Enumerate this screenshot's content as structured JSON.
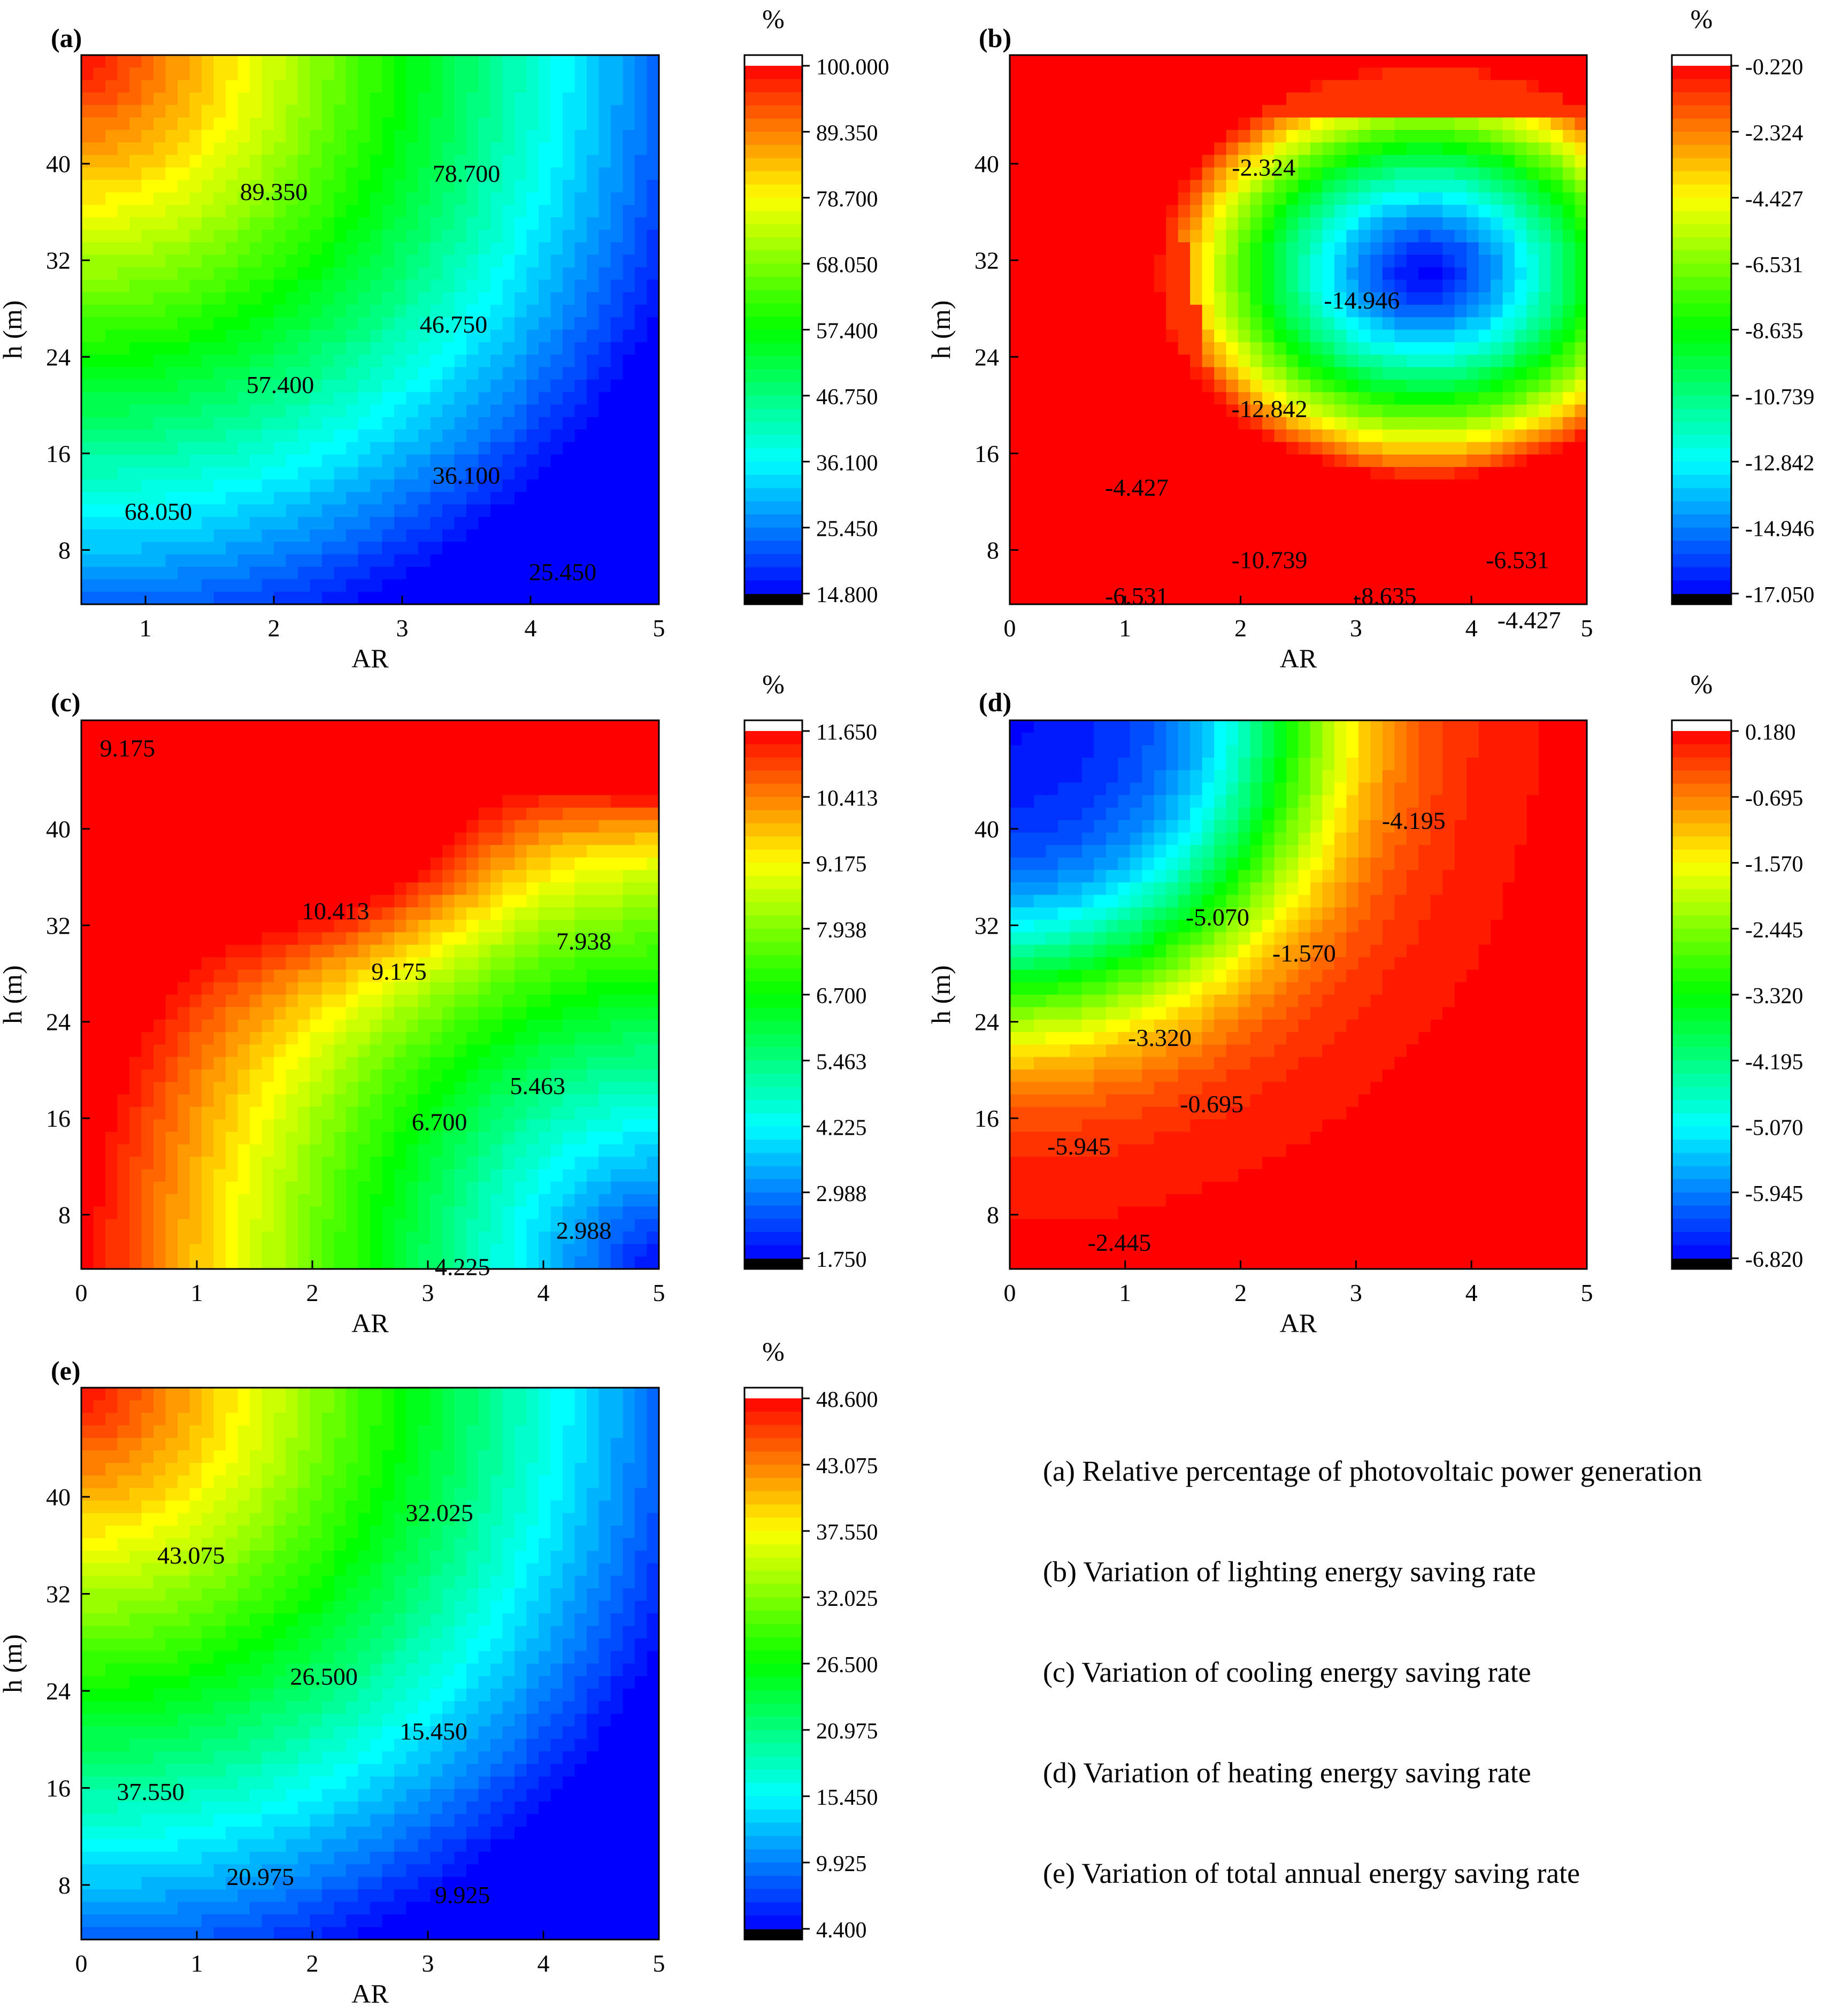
{
  "chart_data": [
    {
      "id": "a",
      "type": "contour",
      "panel_label": "(a)",
      "title": "Relative percentage of photovoltaic power generation",
      "xlabel": "AR",
      "ylabel": "h (m)",
      "xlim": [
        0.5,
        5
      ],
      "ylim": [
        3.5,
        49
      ],
      "xticks": [
        1,
        2,
        3,
        4,
        5
      ],
      "yticks": [
        8,
        16,
        24,
        32,
        40
      ],
      "colorbar": {
        "unit": "%",
        "min": 14.8,
        "max": 100.0,
        "ticks": [
          "100.000",
          "89.350",
          "78.700",
          "68.050",
          "57.400",
          "46.750",
          "36.100",
          "25.450",
          "14.800"
        ],
        "palette": [
          "#0000ff",
          "#00ffff",
          "#00ff00",
          "#ffff00",
          "#ff0000"
        ]
      },
      "model": {
        "kind": "radial",
        "center": [
          0.5,
          49
        ],
        "sx": 4.5,
        "sy": 45.5,
        "power": 1.0,
        "high_at_center": true
      },
      "contour_labels": [
        {
          "text": "89.350",
          "x": 2.0,
          "y": 37
        },
        {
          "text": "78.700",
          "x": 3.5,
          "y": 38.5
        },
        {
          "text": "46.750",
          "x": 3.4,
          "y": 26
        },
        {
          "text": "57.400",
          "x": 2.05,
          "y": 21
        },
        {
          "text": "36.100",
          "x": 3.5,
          "y": 13.5
        },
        {
          "text": "68.050",
          "x": 1.1,
          "y": 10.5
        },
        {
          "text": "25.450",
          "x": 4.25,
          "y": 5.5
        }
      ]
    },
    {
      "id": "b",
      "type": "contour",
      "panel_label": "(b)",
      "title": "Variation of lighting energy saving rate",
      "xlabel": "AR",
      "ylabel": "h (m)",
      "xlim": [
        0,
        5
      ],
      "ylim": [
        3.5,
        49
      ],
      "xticks": [
        0,
        1,
        2,
        3,
        4,
        5
      ],
      "yticks": [
        8,
        16,
        24,
        32,
        40
      ],
      "colorbar": {
        "unit": "%",
        "min": -17.05,
        "max": -0.22,
        "ticks": [
          "-0.220",
          "-2.324",
          "-4.427",
          "-6.531",
          "-8.635",
          "-10.739",
          "-12.842",
          "-14.946",
          "-17.050"
        ],
        "palette": [
          "#0000ff",
          "#00ffff",
          "#00ff00",
          "#ffff00",
          "#ff0000"
        ]
      },
      "model": {
        "kind": "blob",
        "center": [
          3.6,
          31
        ],
        "sx": 1.9,
        "sy": 14,
        "power": 1.4,
        "boundary": 0.8,
        "gain": 2.0
      },
      "contour_labels": [
        {
          "text": "-2.324",
          "x": 2.2,
          "y": 39
        },
        {
          "text": "-14.946",
          "x": 3.05,
          "y": 28
        },
        {
          "text": "-12.842",
          "x": 2.25,
          "y": 19
        },
        {
          "text": "-4.427",
          "x": 1.1,
          "y": 12.5
        },
        {
          "text": "-10.739",
          "x": 2.25,
          "y": 6.5
        },
        {
          "text": "-6.531",
          "x": 1.1,
          "y": 3.5
        },
        {
          "text": "-8.635",
          "x": 3.25,
          "y": 3.5
        },
        {
          "text": "-6.531",
          "x": 4.4,
          "y": 6.5
        },
        {
          "text": "-4.427",
          "x": 4.5,
          "y": 1.5
        }
      ]
    },
    {
      "id": "c",
      "type": "contour",
      "panel_label": "(c)",
      "title": "Variation of cooling energy saving rate",
      "xlabel": "AR",
      "ylabel": "h (m)",
      "xlim": [
        0,
        5
      ],
      "ylim": [
        3.5,
        49
      ],
      "xticks": [
        0,
        1,
        2,
        3,
        4,
        5
      ],
      "yticks": [
        8,
        16,
        24,
        32,
        40
      ],
      "colorbar": {
        "unit": "%",
        "min": 1.75,
        "max": 11.65,
        "ticks": [
          "11.650",
          "10.413",
          "9.175",
          "7.938",
          "6.700",
          "5.463",
          "4.225",
          "2.988",
          "1.750"
        ],
        "palette": [
          "#0000ff",
          "#00ffff",
          "#00ff00",
          "#ffff00",
          "#ff0000"
        ]
      },
      "model": {
        "kind": "cooling"
      },
      "contour_labels": [
        {
          "text": "9.175",
          "x": 0.4,
          "y": 46
        },
        {
          "text": "10.413",
          "x": 2.2,
          "y": 32.5
        },
        {
          "text": "9.175",
          "x": 2.75,
          "y": 27.5
        },
        {
          "text": "7.938",
          "x": 4.35,
          "y": 30
        },
        {
          "text": "5.463",
          "x": 3.95,
          "y": 18
        },
        {
          "text": "6.700",
          "x": 3.1,
          "y": 15
        },
        {
          "text": "2.988",
          "x": 4.35,
          "y": 6
        },
        {
          "text": "4.225",
          "x": 3.3,
          "y": 3
        }
      ]
    },
    {
      "id": "d",
      "type": "contour",
      "panel_label": "(d)",
      "title": "Variation of heating energy saving rate",
      "xlabel": "AR",
      "ylabel": "h (m)",
      "xlim": [
        0,
        5
      ],
      "ylim": [
        3.5,
        49
      ],
      "xticks": [
        0,
        1,
        2,
        3,
        4,
        5
      ],
      "yticks": [
        8,
        16,
        24,
        32,
        40
      ],
      "colorbar": {
        "unit": "%",
        "min": -6.82,
        "max": 0.18,
        "ticks": [
          "0.180",
          "-0.695",
          "-1.570",
          "-2.445",
          "-3.320",
          "-4.195",
          "-5.070",
          "-5.945",
          "-6.820"
        ],
        "palette": [
          "#0000ff",
          "#00ffff",
          "#00ff00",
          "#ffff00",
          "#ff0000"
        ]
      },
      "model": {
        "kind": "radial",
        "center": [
          0,
          49
        ],
        "sx": 5,
        "sy": 45.5,
        "power": 1.0,
        "high_at_center": false,
        "steep": 0.48,
        "width": 0.1
      },
      "contour_labels": [
        {
          "text": "-4.195",
          "x": 3.5,
          "y": 40
        },
        {
          "text": "-5.070",
          "x": 1.8,
          "y": 32
        },
        {
          "text": "-1.570",
          "x": 2.55,
          "y": 29
        },
        {
          "text": "-3.320",
          "x": 1.3,
          "y": 22
        },
        {
          "text": "-0.695",
          "x": 1.75,
          "y": 16.5
        },
        {
          "text": "-5.945",
          "x": 0.6,
          "y": 13
        },
        {
          "text": "-2.445",
          "x": 0.95,
          "y": 5
        }
      ]
    },
    {
      "id": "e",
      "type": "contour",
      "panel_label": "(e)",
      "title": "Variation of total annual energy saving rate",
      "xlabel": "AR",
      "ylabel": "h (m)",
      "xlim": [
        0,
        5
      ],
      "ylim": [
        3.5,
        49
      ],
      "xticks": [
        0,
        1,
        2,
        3,
        4,
        5
      ],
      "yticks": [
        8,
        16,
        24,
        32,
        40
      ],
      "colorbar": {
        "unit": "%",
        "min": 4.4,
        "max": 48.6,
        "ticks": [
          "48.600",
          "43.075",
          "37.550",
          "32.025",
          "26.500",
          "20.975",
          "15.450",
          "9.925",
          "4.400"
        ],
        "palette": [
          "#0000ff",
          "#00ffff",
          "#00ff00",
          "#ffff00",
          "#ff0000"
        ]
      },
      "model": {
        "kind": "radial",
        "center": [
          0,
          49
        ],
        "sx": 5,
        "sy": 45.5,
        "power": 1.0,
        "high_at_center": true
      },
      "contour_labels": [
        {
          "text": "43.075",
          "x": 0.95,
          "y": 34.5
        },
        {
          "text": "32.025",
          "x": 3.1,
          "y": 38
        },
        {
          "text": "26.500",
          "x": 2.1,
          "y": 24.5
        },
        {
          "text": "15.450",
          "x": 3.05,
          "y": 20
        },
        {
          "text": "37.550",
          "x": 0.6,
          "y": 15
        },
        {
          "text": "20.975",
          "x": 1.55,
          "y": 8
        },
        {
          "text": "9.925",
          "x": 3.3,
          "y": 6.5
        }
      ]
    }
  ],
  "legend": {
    "lines": [
      "(a) Relative percentage of photovoltaic power generation",
      "(b) Variation of lighting energy saving rate",
      "(c) Variation of cooling energy saving rate",
      "(d) Variation of heating energy saving rate",
      "(e) Variation of total annual energy saving rate"
    ]
  }
}
